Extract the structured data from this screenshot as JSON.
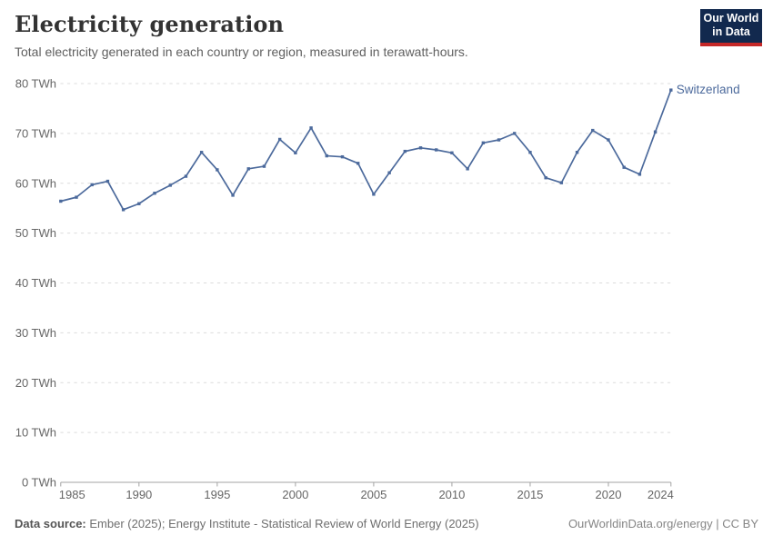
{
  "header": {
    "title": "Electricity generation",
    "subtitle": "Total electricity generated in each country or region, measured in terawatt-hours."
  },
  "logo": {
    "line1": "Our World",
    "line2": "in Data"
  },
  "entity_label": "Switzerland",
  "footer": {
    "source_label": "Data source:",
    "source_text": " Ember (2025); Energy Institute - Statistical Review of World Energy (2025)",
    "right_text": "OurWorldinData.org/energy | CC BY"
  },
  "colors": {
    "line": "#4c6a9c",
    "grid": "#dcdcdc",
    "axis": "#a3a3a3",
    "tick_label": "#666666"
  },
  "chart_data": {
    "type": "line",
    "title": "Electricity generation",
    "ylabel": "",
    "xlabel": "",
    "unit": "TWh",
    "xlim": [
      1985,
      2024
    ],
    "ylim": [
      0,
      80
    ],
    "x_ticks": [
      1985,
      1990,
      1995,
      2000,
      2005,
      2010,
      2015,
      2020,
      2024
    ],
    "y_ticks": [
      0,
      10,
      20,
      30,
      40,
      50,
      60,
      70,
      80
    ],
    "y_tick_suffix": " TWh",
    "grid": "horizontal-dashed",
    "legend_position": "end-of-line-label",
    "series": [
      {
        "name": "Switzerland",
        "color": "#4c6a9c",
        "x": [
          1985,
          1986,
          1987,
          1988,
          1989,
          1990,
          1991,
          1992,
          1993,
          1994,
          1995,
          1996,
          1997,
          1998,
          1999,
          2000,
          2001,
          2002,
          2003,
          2004,
          2005,
          2006,
          2007,
          2008,
          2009,
          2010,
          2011,
          2012,
          2013,
          2014,
          2015,
          2016,
          2017,
          2018,
          2019,
          2020,
          2021,
          2022,
          2023,
          2024
        ],
        "values": [
          56.4,
          57.2,
          59.7,
          60.4,
          54.7,
          55.9,
          58.0,
          59.6,
          61.4,
          66.2,
          62.7,
          57.6,
          62.9,
          63.4,
          68.8,
          66.1,
          71.1,
          65.5,
          65.3,
          64.0,
          57.8,
          62.1,
          66.4,
          67.1,
          66.7,
          66.1,
          62.9,
          68.1,
          68.7,
          70.0,
          66.2,
          61.1,
          60.1,
          66.2,
          70.6,
          68.7,
          63.2,
          61.8,
          70.3,
          78.7
        ]
      }
    ]
  }
}
